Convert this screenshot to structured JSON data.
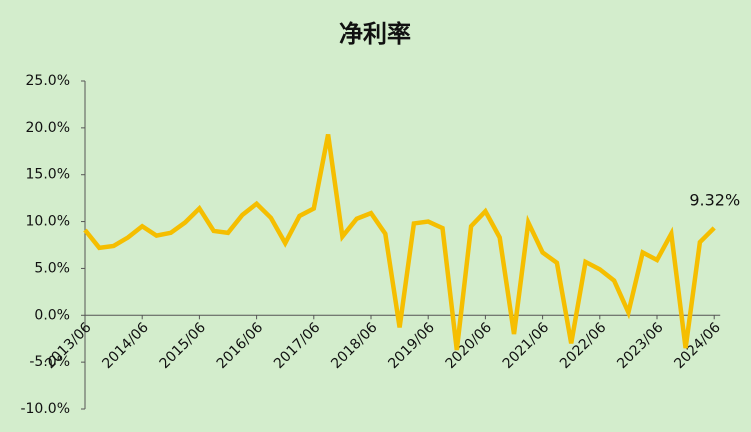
{
  "chart_data": {
    "type": "line",
    "title": "净利率",
    "categories": [
      "2013/06",
      null,
      null,
      null,
      "2014/06",
      null,
      null,
      null,
      "2015/06",
      null,
      null,
      null,
      "2016/06",
      null,
      null,
      null,
      "2017/06",
      null,
      null,
      null,
      "2018/06",
      null,
      null,
      null,
      "2019/06",
      null,
      null,
      null,
      "2020/06",
      null,
      null,
      null,
      "2021/06",
      null,
      null,
      null,
      "2022/06",
      null,
      null,
      null,
      "2023/06",
      null,
      null,
      null,
      "2024/06"
    ],
    "series": [
      {
        "color": "#f5be00",
        "values": [
          9.1,
          7.2,
          7.4,
          8.3,
          9.5,
          8.5,
          8.8,
          9.9,
          11.4,
          9.0,
          8.8,
          10.7,
          11.9,
          10.4,
          7.7,
          10.6,
          11.4,
          19.3,
          8.4,
          10.3,
          10.9,
          8.7,
          -1.3,
          9.8,
          10.0,
          9.3,
          -3.7,
          9.5,
          11.1,
          8.3,
          -2.0,
          9.9,
          6.7,
          5.6,
          -3.0,
          5.7,
          4.9,
          3.7,
          0.3,
          6.7,
          5.9,
          8.7,
          -3.5,
          7.8,
          9.32
        ],
        "value_labels": [
          null,
          null,
          null,
          null,
          null,
          null,
          null,
          null,
          null,
          null,
          null,
          null,
          null,
          null,
          null,
          null,
          null,
          null,
          null,
          null,
          null,
          null,
          null,
          null,
          null,
          null,
          null,
          null,
          null,
          null,
          null,
          null,
          null,
          null,
          null,
          null,
          null,
          null,
          null,
          null,
          null,
          null,
          null,
          null,
          "9.32%"
        ]
      }
    ],
    "ylim": [
      -10,
      25
    ],
    "yticks": [
      {
        "value": -10,
        "label": "-10.0%"
      },
      {
        "value": -5,
        "label": "-5.0%"
      },
      {
        "value": 0,
        "label": "0.0%"
      },
      {
        "value": 5,
        "label": "5.0%"
      },
      {
        "value": 10,
        "label": "10.0%"
      },
      {
        "value": 15,
        "label": "15.0%"
      },
      {
        "value": 20,
        "label": "20.0%"
      },
      {
        "value": 25,
        "label": "25.0%"
      }
    ],
    "grid": false
  }
}
